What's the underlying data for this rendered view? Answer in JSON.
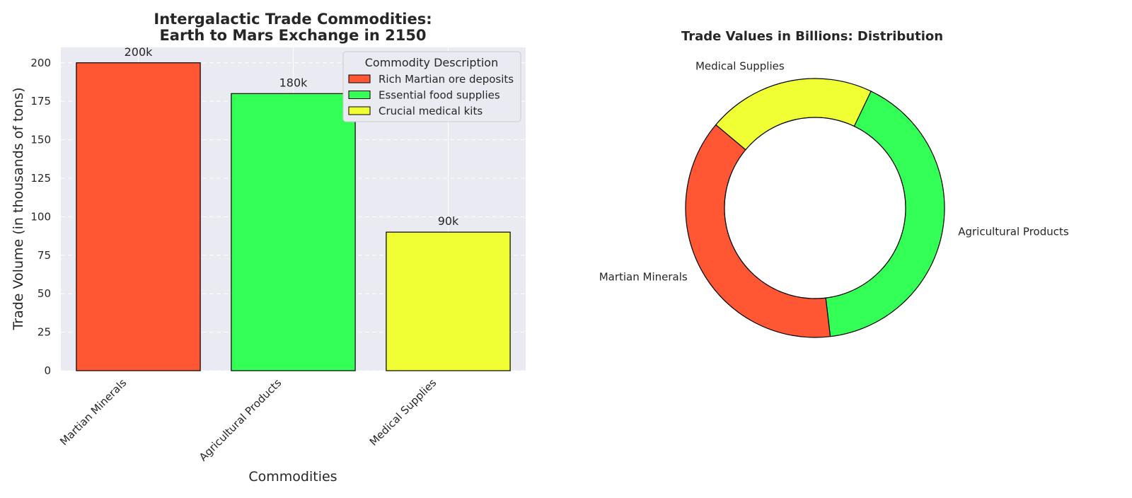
{
  "colors": {
    "minerals": "#ff5733",
    "agriculture": "#33ff57",
    "medical": "#f0ff33",
    "plot_bg": "#eaeaf2",
    "text": "#262626"
  },
  "chart_data": [
    {
      "type": "bar",
      "title_line1": "Intergalactic Trade Commodities:",
      "title_line2": "Earth to Mars Exchange in 2150",
      "xlabel": "Commodities",
      "ylabel": "Trade Volume (in thousands of tons)",
      "categories": [
        "Martian Minerals",
        "Agricultural Products",
        "Medical Supplies"
      ],
      "values": [
        200,
        180,
        90
      ],
      "data_labels": [
        "200k",
        "180k",
        "90k"
      ],
      "ylim": [
        0,
        210
      ],
      "yticks": [
        0,
        25,
        50,
        75,
        100,
        125,
        150,
        175,
        200
      ],
      "grid": true,
      "legend": {
        "title": "Commodity Description",
        "placement": "top-right",
        "entries": [
          "Rich Martian ore deposits",
          "Essential food supplies",
          "Crucial medical kits"
        ]
      }
    },
    {
      "type": "pie",
      "variant": "donut",
      "title": "Trade Values in Billions: Distribution",
      "labels": [
        "Martian Minerals",
        "Agricultural Products",
        "Medical Supplies"
      ],
      "values": [
        38,
        41,
        21
      ]
    }
  ]
}
